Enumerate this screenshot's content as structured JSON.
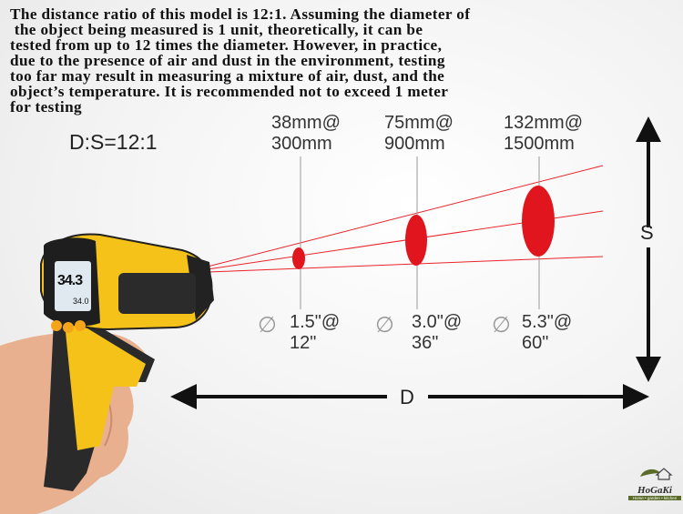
{
  "description_lines": [
    "The distance ratio of this model is 12:1. Assuming the diameter of",
    " the object being measured is 1 unit, theoretically, it can be",
    "tested from up to 12 times the diameter. However, in practice,",
    "due to the presence of air and dust in the environment, testing",
    "too far may result in measuring a mixture of air, dust, and the",
    "object’s temperature. It is recommended not to exceed 1 meter",
    "for testing"
  ],
  "ratio_label": "D:S=12:1",
  "spots_metric": [
    {
      "size": "38mm@",
      "distance": "300mm"
    },
    {
      "size": "75mm@",
      "distance": "900mm"
    },
    {
      "size": "132mm@",
      "distance": "1500mm"
    }
  ],
  "spots_imperial": [
    {
      "symbol": "∅",
      "size": "1.5\"@",
      "distance": "12\""
    },
    {
      "symbol": "∅",
      "size": "3.0\"@",
      "distance": "36\""
    },
    {
      "symbol": "∅",
      "size": "5.3\"@",
      "distance": "60\""
    }
  ],
  "axes": {
    "spot": "S",
    "distance": "D"
  },
  "device_display": {
    "reading": "34.3",
    "secondary": "34.0"
  },
  "logo": {
    "name": "HoGaKi",
    "tagline": "Home • garden • kitchen"
  },
  "colors": {
    "laser": "#e8242a",
    "body": "#f5c21a",
    "accent": "#222222"
  }
}
